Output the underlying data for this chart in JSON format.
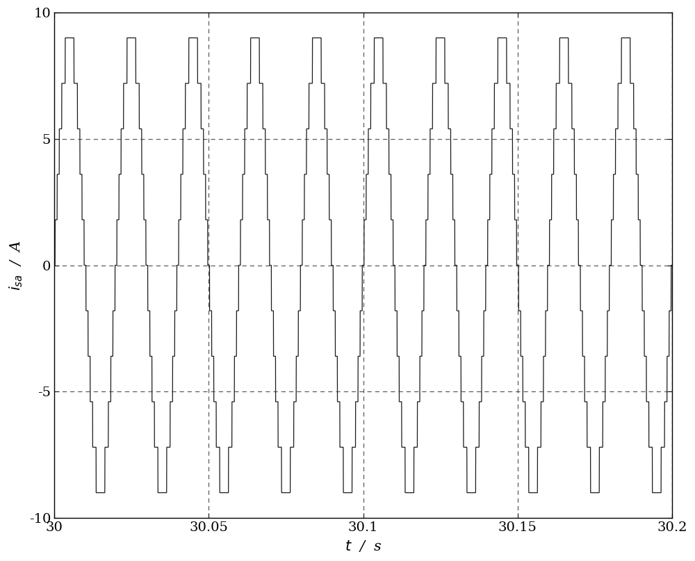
{
  "t_start": 30.0,
  "t_end": 30.2,
  "ylim": [
    -10,
    10
  ],
  "yticks": [
    -10,
    -5,
    0,
    5,
    10
  ],
  "xticks": [
    30.0,
    30.05,
    30.1,
    30.15,
    30.2
  ],
  "xtick_labels": [
    "30",
    "30.05",
    "30.1",
    "30.15",
    "30.2"
  ],
  "xlabel": "$t$  /  s",
  "ylabel": "$i_{sa}$  /  A",
  "line_color": "#1a1a1a",
  "grid_color": "#333333",
  "background_color": "#ffffff",
  "vlines": [
    30.05,
    30.1,
    30.15,
    30.2
  ],
  "hlines": [
    -5,
    0,
    5
  ],
  "freq": 50.0,
  "amplitude": 9.0,
  "n_levels": 5,
  "figsize": [
    10.0,
    8.07
  ],
  "dpi": 100
}
